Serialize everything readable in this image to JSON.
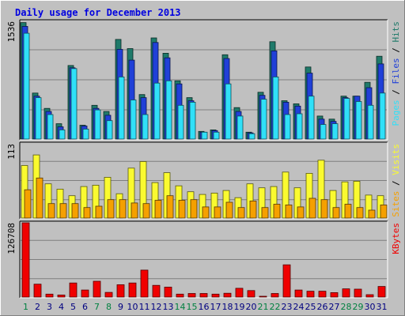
{
  "chart_data": {
    "type": "bar",
    "title": "Daily usage for December 2013",
    "categories": [
      "1",
      "2",
      "3",
      "4",
      "5",
      "6",
      "7",
      "8",
      "9",
      "10",
      "11",
      "12",
      "13",
      "14",
      "15",
      "16",
      "17",
      "18",
      "19",
      "20",
      "21",
      "22",
      "23",
      "24",
      "25",
      "26",
      "27",
      "28",
      "29",
      "30",
      "31"
    ],
    "weekend_days": [
      1,
      7,
      8,
      14,
      15,
      21,
      22,
      28,
      29
    ],
    "panels": [
      {
        "id": "upper",
        "axis_max_label": "1536",
        "ylim": [
          0,
          1536
        ],
        "side_label_parts": [
          "Pages",
          "Files",
          "Hits"
        ],
        "series": [
          {
            "key": "hits",
            "color": "#1f7a6a",
            "values": [
              1520,
              600,
              400,
              200,
              960,
              180,
              440,
              360,
              1300,
              1180,
              580,
              1320,
              1120,
              760,
              540,
              100,
              120,
              1100,
              410,
              90,
              610,
              1270,
              500,
              460,
              940,
              300,
              260,
              560,
              560,
              740,
              1080
            ]
          },
          {
            "key": "files",
            "color": "#2040d8",
            "values": [
              1470,
              560,
              360,
              160,
              930,
              170,
              400,
              310,
              1170,
              1030,
              540,
              1260,
              1060,
              720,
              500,
              90,
              110,
              1050,
              360,
              80,
              570,
              1150,
              480,
              430,
              860,
              260,
              230,
              540,
              560,
              670,
              980
            ]
          },
          {
            "key": "pages",
            "color": "#30e0f8",
            "values": [
              1380,
              540,
              320,
              120,
              920,
              130,
              380,
              240,
              810,
              510,
              320,
              730,
              760,
              440,
              480,
              90,
              90,
              720,
              300,
              70,
              520,
              810,
              320,
              330,
              560,
              190,
              200,
              530,
              490,
              440,
              600
            ]
          }
        ]
      },
      {
        "id": "middle",
        "axis_max_label": "113",
        "ylim": [
          0,
          113
        ],
        "side_label_parts": [
          "Sites",
          "Visits"
        ],
        "series": [
          {
            "key": "visits",
            "color": "#fafa30",
            "values": [
              80,
              96,
              52,
              44,
              34,
              48,
              50,
              62,
              37,
              76,
              86,
              54,
              69,
              49,
              40,
              36,
              38,
              42,
              31,
              52,
              46,
              48,
              70,
              46,
              68,
              88,
              42,
              55,
              56,
              35,
              34
            ]
          },
          {
            "key": "sites",
            "color": "#f5a000",
            "values": [
              43,
              61,
              22,
              22,
              22,
              16,
              18,
              28,
              28,
              23,
              22,
              27,
              34,
              27,
              28,
              17,
              17,
              24,
              16,
              26,
              16,
              21,
              20,
              17,
              30,
              28,
              16,
              21,
              16,
              12,
              20
            ]
          }
        ]
      },
      {
        "id": "lower",
        "axis_max_label": "126708",
        "ylim": [
          0,
          126708
        ],
        "side_label_parts": [
          "KBytes"
        ],
        "series": [
          {
            "key": "kbytes",
            "color": "#f00000",
            "values": [
              126708,
              22000,
              5000,
              3500,
              24000,
              12000,
              27000,
              8000,
              21000,
              24000,
              46000,
              20000,
              17000,
              5000,
              6000,
              6000,
              5000,
              6500,
              15000,
              11000,
              1000,
              6000,
              55000,
              12000,
              10000,
              10000,
              7500,
              14000,
              13500,
              4000,
              18000
            ]
          }
        ]
      }
    ]
  },
  "colors": {
    "background": "#c0c0c0",
    "title": "#0000e0",
    "weekend_day": "#008040",
    "weekday_day": "#000080",
    "grid": "#7f7f7f",
    "axis_max": "#000000",
    "side_separator": "#000000"
  }
}
